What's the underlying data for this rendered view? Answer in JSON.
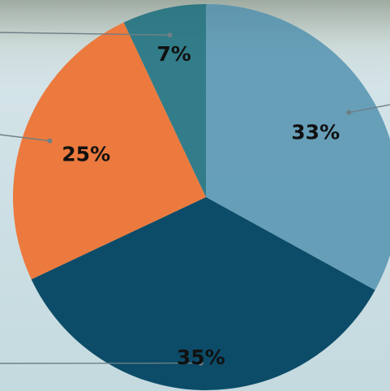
{
  "chart_data": {
    "type": "pie",
    "values": [
      33,
      35,
      25,
      7
    ],
    "labels": [
      "33%",
      "35%",
      "25%",
      "7%"
    ],
    "colors": [
      "#4f90ae",
      "#0c4c68",
      "#ec7a3e",
      "#21717f"
    ],
    "leader_color": "#6e7f86",
    "legend": "none"
  }
}
